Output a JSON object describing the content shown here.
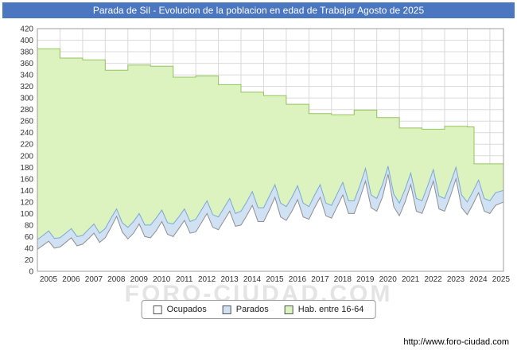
{
  "title": "Parada de Sil - Evolucion de la poblacion en edad de Trabajar Agosto de 2025",
  "watermark": "FORO-CIUDAD.COM",
  "footer_url": "http://www.foro-ciudad.com",
  "colors": {
    "titlebar": "#4a77c0",
    "grid": "#dadada",
    "plot_border": "#9c9c9c",
    "axis_text": "#333333"
  },
  "legend": [
    {
      "label": "Ocupados",
      "fill": "#ffffff",
      "stroke": "#8f8f8f"
    },
    {
      "label": "Parados",
      "fill": "#cfe1f3",
      "stroke": "#7aa8d4"
    },
    {
      "label": "Hab. entre 16-64",
      "fill": "#dcf2bf",
      "stroke": "#94c45e"
    }
  ],
  "chart_data": {
    "type": "area",
    "title": "Parada de Sil - Evolucion de la poblacion en edad de Trabajar Agosto de 2025",
    "xlabel": "",
    "ylabel": "",
    "grid": true,
    "legend_position": "bottom",
    "x_range": [
      2005,
      2025.6
    ],
    "y_range": [
      0,
      420
    ],
    "y_tick_step": 20,
    "x_ticks": [
      2005,
      2006,
      2007,
      2008,
      2009,
      2010,
      2011,
      2012,
      2013,
      2014,
      2015,
      2016,
      2017,
      2018,
      2019,
      2020,
      2021,
      2022,
      2023,
      2024,
      2025
    ],
    "note": "Series are stacked visually: 'Hab. entre 16-64' (yearly step) behind, 'Parados' band top = Ocupados+Parados, 'Ocupados' white area on top. Values estimated from axes.",
    "series": [
      {
        "name": "Hab. entre 16-64",
        "mode": "step",
        "fill": "#dcf2bf",
        "stroke": "#94c45e",
        "points": [
          [
            2005,
            385
          ],
          [
            2006,
            369
          ],
          [
            2007,
            366
          ],
          [
            2008,
            348
          ],
          [
            2009,
            357
          ],
          [
            2010,
            355
          ],
          [
            2011,
            336
          ],
          [
            2012,
            338
          ],
          [
            2013,
            323
          ],
          [
            2014,
            310
          ],
          [
            2015,
            304
          ],
          [
            2016,
            289
          ],
          [
            2017,
            273
          ],
          [
            2018,
            271
          ],
          [
            2019,
            279
          ],
          [
            2020,
            266
          ],
          [
            2021,
            248
          ],
          [
            2022,
            246
          ],
          [
            2023,
            251
          ],
          [
            2024,
            250
          ],
          [
            2024.3,
            186
          ],
          [
            2025.6,
            186
          ]
        ]
      },
      {
        "name": "Parados",
        "mode": "line",
        "fill": "#cfe1f3",
        "stroke": "#7aa8d4",
        "points": [
          [
            2005,
            55
          ],
          [
            2005.25,
            62
          ],
          [
            2005.5,
            70
          ],
          [
            2005.75,
            57
          ],
          [
            2006,
            58
          ],
          [
            2006.25,
            66
          ],
          [
            2006.5,
            74
          ],
          [
            2006.75,
            60
          ],
          [
            2007,
            62
          ],
          [
            2007.25,
            72
          ],
          [
            2007.5,
            82
          ],
          [
            2007.75,
            66
          ],
          [
            2008,
            74
          ],
          [
            2008.25,
            92
          ],
          [
            2008.5,
            108
          ],
          [
            2008.75,
            84
          ],
          [
            2009,
            76
          ],
          [
            2009.25,
            86
          ],
          [
            2009.5,
            100
          ],
          [
            2009.75,
            80
          ],
          [
            2010,
            80
          ],
          [
            2010.25,
            92
          ],
          [
            2010.5,
            106
          ],
          [
            2010.75,
            84
          ],
          [
            2011,
            82
          ],
          [
            2011.25,
            94
          ],
          [
            2011.5,
            108
          ],
          [
            2011.75,
            86
          ],
          [
            2012,
            90
          ],
          [
            2012.25,
            106
          ],
          [
            2012.5,
            122
          ],
          [
            2012.75,
            98
          ],
          [
            2013,
            94
          ],
          [
            2013.25,
            110
          ],
          [
            2013.5,
            126
          ],
          [
            2013.75,
            100
          ],
          [
            2014,
            104
          ],
          [
            2014.25,
            120
          ],
          [
            2014.5,
            138
          ],
          [
            2014.75,
            110
          ],
          [
            2015,
            110
          ],
          [
            2015.25,
            130
          ],
          [
            2015.5,
            150
          ],
          [
            2015.75,
            118
          ],
          [
            2016,
            112
          ],
          [
            2016.25,
            128
          ],
          [
            2016.5,
            148
          ],
          [
            2016.75,
            118
          ],
          [
            2017,
            112
          ],
          [
            2017.25,
            132
          ],
          [
            2017.5,
            150
          ],
          [
            2017.75,
            118
          ],
          [
            2018,
            114
          ],
          [
            2018.25,
            134
          ],
          [
            2018.5,
            154
          ],
          [
            2018.75,
            122
          ],
          [
            2019,
            122
          ],
          [
            2019.25,
            148
          ],
          [
            2019.5,
            178
          ],
          [
            2019.75,
            132
          ],
          [
            2020,
            126
          ],
          [
            2020.25,
            150
          ],
          [
            2020.5,
            182
          ],
          [
            2020.75,
            134
          ],
          [
            2021,
            118
          ],
          [
            2021.25,
            142
          ],
          [
            2021.5,
            170
          ],
          [
            2021.75,
            126
          ],
          [
            2022,
            122
          ],
          [
            2022.25,
            148
          ],
          [
            2022.5,
            176
          ],
          [
            2022.75,
            130
          ],
          [
            2023,
            126
          ],
          [
            2023.25,
            152
          ],
          [
            2023.5,
            180
          ],
          [
            2023.75,
            132
          ],
          [
            2024,
            120
          ],
          [
            2024.25,
            138
          ],
          [
            2024.5,
            158
          ],
          [
            2024.75,
            126
          ],
          [
            2025,
            122
          ],
          [
            2025.25,
            136
          ],
          [
            2025.6,
            140
          ]
        ]
      },
      {
        "name": "Ocupados",
        "mode": "line",
        "fill": "#ffffff",
        "stroke": "#8f8f8f",
        "points": [
          [
            2005,
            38
          ],
          [
            2005.25,
            45
          ],
          [
            2005.5,
            52
          ],
          [
            2005.75,
            40
          ],
          [
            2006,
            42
          ],
          [
            2006.25,
            50
          ],
          [
            2006.5,
            58
          ],
          [
            2006.75,
            44
          ],
          [
            2007,
            47
          ],
          [
            2007.25,
            56
          ],
          [
            2007.5,
            66
          ],
          [
            2007.75,
            50
          ],
          [
            2008,
            58
          ],
          [
            2008.25,
            76
          ],
          [
            2008.5,
            95
          ],
          [
            2008.75,
            68
          ],
          [
            2009,
            56
          ],
          [
            2009.25,
            66
          ],
          [
            2009.5,
            82
          ],
          [
            2009.75,
            60
          ],
          [
            2010,
            58
          ],
          [
            2010.25,
            70
          ],
          [
            2010.5,
            86
          ],
          [
            2010.75,
            64
          ],
          [
            2011,
            60
          ],
          [
            2011.25,
            74
          ],
          [
            2011.5,
            88
          ],
          [
            2011.75,
            66
          ],
          [
            2012,
            68
          ],
          [
            2012.25,
            84
          ],
          [
            2012.5,
            100
          ],
          [
            2012.75,
            76
          ],
          [
            2013,
            72
          ],
          [
            2013.25,
            88
          ],
          [
            2013.5,
            104
          ],
          [
            2013.75,
            78
          ],
          [
            2014,
            80
          ],
          [
            2014.25,
            96
          ],
          [
            2014.5,
            114
          ],
          [
            2014.75,
            86
          ],
          [
            2015,
            86
          ],
          [
            2015.25,
            106
          ],
          [
            2015.5,
            128
          ],
          [
            2015.75,
            94
          ],
          [
            2016,
            88
          ],
          [
            2016.25,
            104
          ],
          [
            2016.5,
            124
          ],
          [
            2016.75,
            94
          ],
          [
            2017,
            90
          ],
          [
            2017.25,
            110
          ],
          [
            2017.5,
            128
          ],
          [
            2017.75,
            96
          ],
          [
            2018,
            92
          ],
          [
            2018.25,
            112
          ],
          [
            2018.5,
            132
          ],
          [
            2018.75,
            100
          ],
          [
            2019,
            100
          ],
          [
            2019.25,
            126
          ],
          [
            2019.5,
            156
          ],
          [
            2019.75,
            110
          ],
          [
            2020,
            104
          ],
          [
            2020.25,
            128
          ],
          [
            2020.5,
            168
          ],
          [
            2020.75,
            112
          ],
          [
            2021,
            96
          ],
          [
            2021.25,
            120
          ],
          [
            2021.5,
            150
          ],
          [
            2021.75,
            104
          ],
          [
            2022,
            100
          ],
          [
            2022.25,
            126
          ],
          [
            2022.5,
            156
          ],
          [
            2022.75,
            108
          ],
          [
            2023,
            104
          ],
          [
            2023.25,
            130
          ],
          [
            2023.5,
            160
          ],
          [
            2023.75,
            110
          ],
          [
            2024,
            98
          ],
          [
            2024.25,
            116
          ],
          [
            2024.5,
            136
          ],
          [
            2024.75,
            104
          ],
          [
            2025,
            100
          ],
          [
            2025.25,
            114
          ],
          [
            2025.6,
            120
          ]
        ]
      }
    ]
  }
}
